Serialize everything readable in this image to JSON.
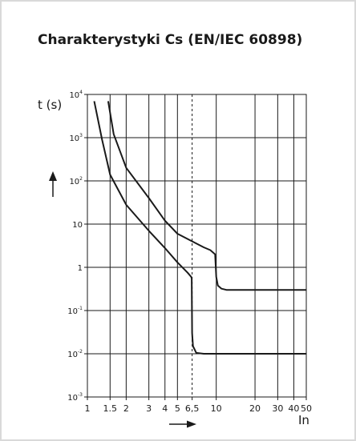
{
  "title": "Charakterystyki Cs (EN/IEC 60898)",
  "chart_data": {
    "type": "line",
    "title": "Charakterystyki Cs (EN/IEC 60898)",
    "xlabel": "In",
    "ylabel": "t (s)",
    "x_scale": "log",
    "y_scale": "log",
    "xlim": [
      1,
      50
    ],
    "ylim": [
      0.001,
      10000
    ],
    "x_ticks": [
      {
        "value": 1,
        "label": "1"
      },
      {
        "value": 1.5,
        "label": "1.5"
      },
      {
        "value": 2,
        "label": "2"
      },
      {
        "value": 3,
        "label": "3"
      },
      {
        "value": 4,
        "label": "4"
      },
      {
        "value": 5,
        "label": "5"
      },
      {
        "value": 6.5,
        "label": "6,5"
      },
      {
        "value": 10,
        "label": "10"
      },
      {
        "value": 20,
        "label": "20"
      },
      {
        "value": 30,
        "label": "30"
      },
      {
        "value": 40,
        "label": "40"
      },
      {
        "value": 50,
        "label": "50"
      }
    ],
    "y_ticks": [
      {
        "value": 0.001,
        "base": "10",
        "exp": "-3"
      },
      {
        "value": 0.01,
        "base": "10",
        "exp": "-2"
      },
      {
        "value": 0.1,
        "base": "10",
        "exp": "-1"
      },
      {
        "value": 1,
        "base": "1",
        "exp": ""
      },
      {
        "value": 10,
        "base": "10",
        "exp": ""
      },
      {
        "value": 100,
        "base": "10",
        "exp": "2"
      },
      {
        "value": 1000,
        "base": "10",
        "exp": "3"
      },
      {
        "value": 10000,
        "base": "10",
        "exp": "4"
      }
    ],
    "grid": true,
    "reference_line": {
      "x": 6.5,
      "style": "dashed"
    },
    "series": [
      {
        "points": [
          [
            1.13,
            7000
          ],
          [
            1.3,
            900
          ],
          [
            1.5,
            140
          ],
          [
            2,
            28
          ],
          [
            3,
            7
          ],
          [
            4,
            2.8
          ],
          [
            5,
            1.3
          ],
          [
            6,
            0.75
          ],
          [
            6.4,
            0.6
          ],
          [
            6.45,
            0.55
          ],
          [
            6.5,
            0.03
          ],
          [
            6.6,
            0.015
          ],
          [
            7,
            0.0105
          ],
          [
            8,
            0.01
          ],
          [
            50,
            0.01
          ]
        ]
      },
      {
        "points": [
          [
            1.45,
            7000
          ],
          [
            1.6,
            1200
          ],
          [
            2,
            200
          ],
          [
            3,
            40
          ],
          [
            4,
            12
          ],
          [
            5,
            6
          ],
          [
            6.5,
            4
          ],
          [
            8,
            2.9
          ],
          [
            9,
            2.5
          ],
          [
            9.8,
            2.0
          ],
          [
            10,
            0.6
          ],
          [
            10.3,
            0.38
          ],
          [
            11,
            0.32
          ],
          [
            12,
            0.3
          ],
          [
            50,
            0.3
          ]
        ]
      }
    ]
  }
}
